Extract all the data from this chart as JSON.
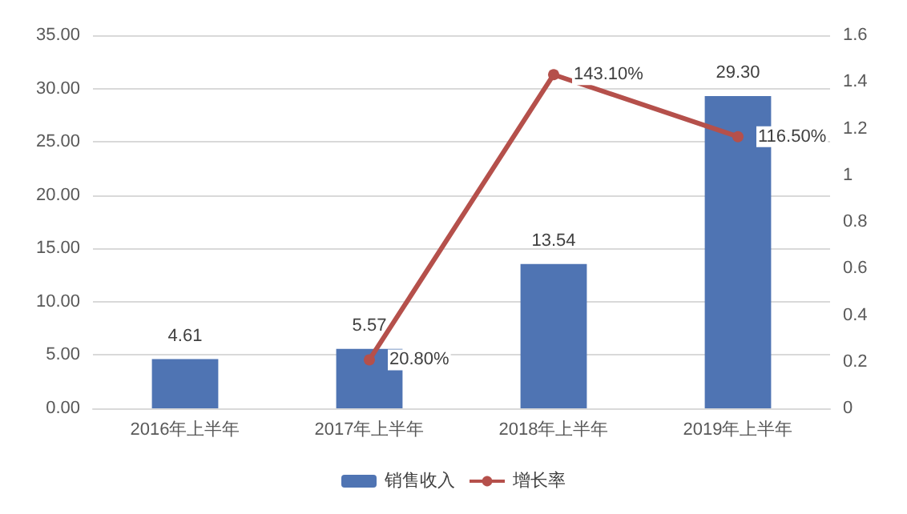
{
  "chart_data": {
    "type": "bar",
    "categories": [
      "2016年上半年",
      "2017年上半年",
      "2018年上半年",
      "2019年上半年"
    ],
    "series": [
      {
        "name": "销售收入",
        "color": "#4f74b3",
        "values": [
          4.61,
          5.57,
          13.54,
          29.3
        ],
        "value_labels": [
          "4.61",
          "5.57",
          "13.54",
          "29.30"
        ]
      },
      {
        "name": "增长率",
        "type": "line",
        "axis": "y2",
        "color": "#b5504b",
        "values": [
          null,
          0.208,
          1.431,
          1.165
        ],
        "value_labels": [
          null,
          "20.80%",
          "143.10%",
          "116.50%"
        ]
      }
    ],
    "ylim": [
      0,
      35
    ],
    "yticks": [
      {
        "value": 0,
        "label": "0.00"
      },
      {
        "value": 5,
        "label": "5.00"
      },
      {
        "value": 10,
        "label": "10.00"
      },
      {
        "value": 15,
        "label": "15.00"
      },
      {
        "value": 20,
        "label": "20.00"
      },
      {
        "value": 25,
        "label": "25.00"
      },
      {
        "value": 30,
        "label": "30.00"
      },
      {
        "value": 35,
        "label": "35.00"
      }
    ],
    "y2lim": [
      0,
      1.6
    ],
    "y2ticks": [
      0,
      0.2,
      0.4,
      0.6,
      0.8,
      1,
      1.2,
      1.4,
      1.6
    ],
    "grid": "y",
    "legend": "bottom",
    "marker": "circle",
    "line_style": "solid"
  }
}
